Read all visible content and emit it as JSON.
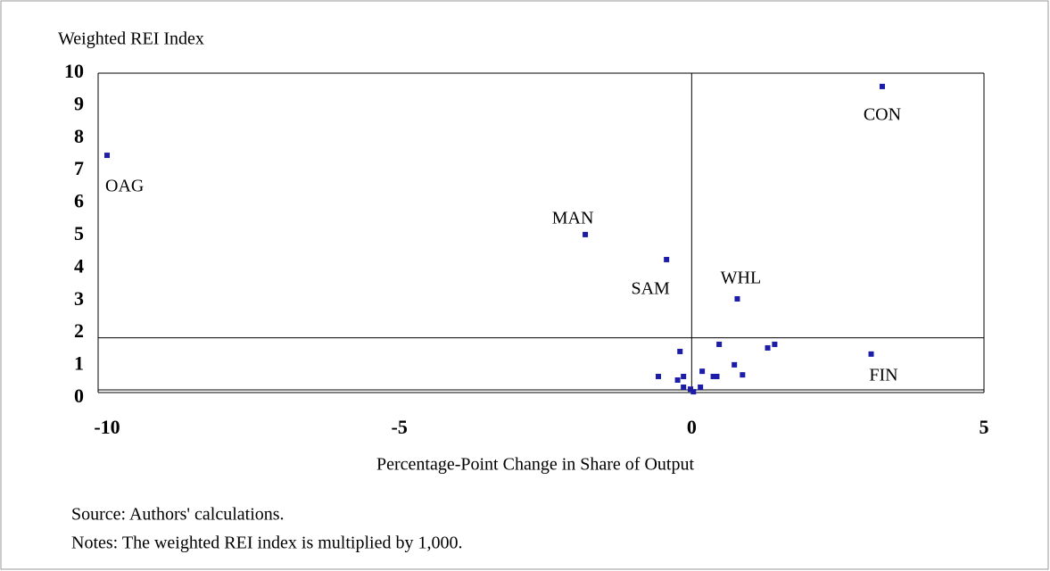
{
  "chart_data": {
    "type": "scatter",
    "ylabel": "Weighted REI Index",
    "xlabel": "Percentage-Point Change in Share of Output",
    "notes": [
      "Source: Authors' calculations.",
      "Notes: The weighted REI index is multiplied by 1,000."
    ],
    "xlim": [
      -10,
      5
    ],
    "xticks": [
      -10,
      -5,
      0,
      5
    ],
    "ylim": [
      0,
      10
    ],
    "yticks": [
      0,
      1,
      2,
      3,
      4,
      5,
      6,
      7,
      8,
      9,
      10
    ],
    "vline": 0,
    "hline": 1.85,
    "color": "#1c1ca8",
    "x": [
      -10.0,
      -1.82,
      -0.43,
      0.78,
      3.26,
      3.07,
      0.47,
      1.3,
      1.42,
      -0.2,
      -0.57,
      0.73,
      0.87,
      0.18,
      0.37,
      0.43,
      -0.24,
      -0.14,
      -0.14,
      -0.02,
      0.03,
      0.15
    ],
    "values": [
      7.47,
      5.03,
      4.26,
      3.05,
      9.59,
      1.35,
      1.65,
      1.54,
      1.65,
      1.43,
      0.66,
      1.02,
      0.71,
      0.82,
      0.66,
      0.66,
      0.55,
      0.66,
      0.33,
      0.27,
      0.19,
      0.33
    ],
    "labels": [
      "OAG",
      "MAN",
      "SAM",
      "WHL",
      "CON",
      "FIN",
      null,
      null,
      null,
      null,
      null,
      null,
      null,
      null,
      null,
      null,
      null,
      null,
      null,
      null,
      null,
      null
    ]
  }
}
